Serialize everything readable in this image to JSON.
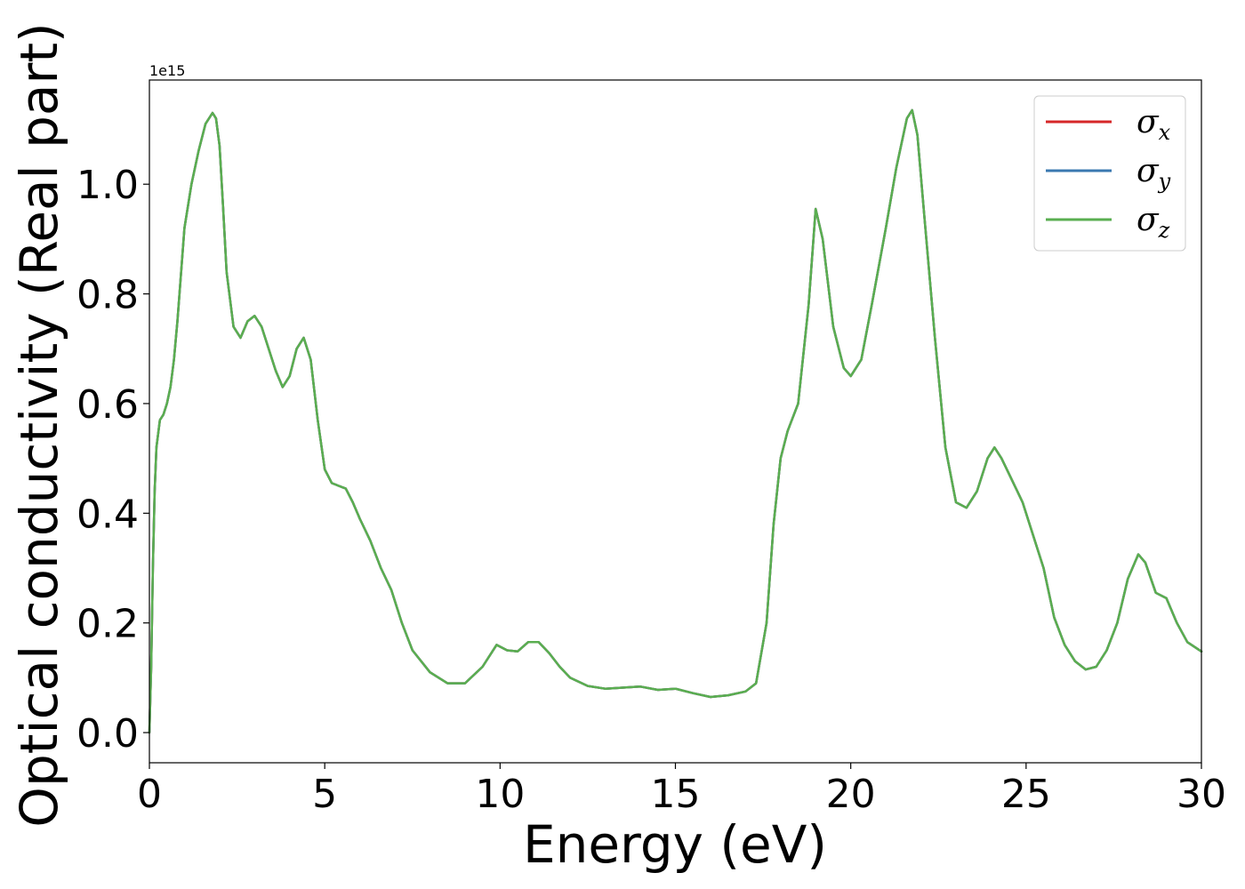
{
  "chart_data": {
    "type": "line",
    "xlabel": "Energy (eV)",
    "ylabel": "Optical conductivity (Real part)",
    "y_offset_text": "1e15",
    "xlim": [
      0,
      30
    ],
    "ylim": [
      -0.055,
      1.19
    ],
    "xticks": [
      0,
      5,
      10,
      15,
      20,
      25,
      30
    ],
    "xtick_labels": [
      "0",
      "5",
      "10",
      "15",
      "20",
      "25",
      "30"
    ],
    "yticks": [
      0.0,
      0.2,
      0.4,
      0.6,
      0.8,
      1.0
    ],
    "ytick_labels": [
      "0.0",
      "0.2",
      "0.4",
      "0.6",
      "0.8",
      "1.0"
    ],
    "grid": false,
    "legend_position": "top-right",
    "x": [
      0,
      0.05,
      0.1,
      0.15,
      0.2,
      0.3,
      0.4,
      0.5,
      0.6,
      0.7,
      0.8,
      1.0,
      1.2,
      1.4,
      1.6,
      1.8,
      1.9,
      2.0,
      2.1,
      2.2,
      2.4,
      2.6,
      2.8,
      3.0,
      3.2,
      3.4,
      3.6,
      3.8,
      4.0,
      4.2,
      4.4,
      4.6,
      4.8,
      5.0,
      5.2,
      5.4,
      5.6,
      5.8,
      6.0,
      6.3,
      6.6,
      6.9,
      7.2,
      7.5,
      8.0,
      8.5,
      9.0,
      9.5,
      9.9,
      10.2,
      10.5,
      10.8,
      11.1,
      11.4,
      11.7,
      12.0,
      12.5,
      13.0,
      13.5,
      14.0,
      14.5,
      15.0,
      15.5,
      16.0,
      16.5,
      17.0,
      17.3,
      17.6,
      17.8,
      18.0,
      18.2,
      18.5,
      18.8,
      19.0,
      19.2,
      19.5,
      19.8,
      20.0,
      20.3,
      20.6,
      21.0,
      21.3,
      21.6,
      21.75,
      21.9,
      22.1,
      22.4,
      22.7,
      23.0,
      23.3,
      23.6,
      23.9,
      24.1,
      24.3,
      24.6,
      24.9,
      25.2,
      25.5,
      25.8,
      26.1,
      26.4,
      26.7,
      27.0,
      27.3,
      27.6,
      27.9,
      28.2,
      28.4,
      28.7,
      29.0,
      29.3,
      29.6,
      30.0
    ],
    "series": [
      {
        "name": "σx",
        "label_base": "σ",
        "label_sub": "x",
        "color": "#d62728",
        "values": [
          0.0,
          0.12,
          0.3,
          0.44,
          0.52,
          0.57,
          0.58,
          0.6,
          0.63,
          0.68,
          0.75,
          0.92,
          1.0,
          1.06,
          1.11,
          1.13,
          1.12,
          1.07,
          0.96,
          0.84,
          0.74,
          0.72,
          0.75,
          0.76,
          0.74,
          0.7,
          0.66,
          0.63,
          0.65,
          0.7,
          0.72,
          0.68,
          0.57,
          0.48,
          0.455,
          0.45,
          0.445,
          0.42,
          0.39,
          0.35,
          0.3,
          0.26,
          0.2,
          0.15,
          0.11,
          0.09,
          0.09,
          0.12,
          0.16,
          0.15,
          0.148,
          0.165,
          0.165,
          0.145,
          0.12,
          0.1,
          0.085,
          0.08,
          0.082,
          0.084,
          0.078,
          0.08,
          0.072,
          0.065,
          0.068,
          0.075,
          0.09,
          0.2,
          0.38,
          0.5,
          0.55,
          0.6,
          0.78,
          0.955,
          0.9,
          0.74,
          0.665,
          0.65,
          0.68,
          0.78,
          0.92,
          1.03,
          1.12,
          1.135,
          1.09,
          0.94,
          0.72,
          0.52,
          0.42,
          0.41,
          0.44,
          0.5,
          0.52,
          0.5,
          0.46,
          0.42,
          0.36,
          0.3,
          0.21,
          0.16,
          0.13,
          0.115,
          0.12,
          0.15,
          0.2,
          0.28,
          0.325,
          0.31,
          0.255,
          0.245,
          0.2,
          0.165,
          0.148
        ]
      },
      {
        "name": "σy",
        "label_base": "σ",
        "label_sub": "y",
        "color": "#3a78b0",
        "values": [
          0.0,
          0.12,
          0.3,
          0.44,
          0.52,
          0.57,
          0.58,
          0.6,
          0.63,
          0.68,
          0.75,
          0.92,
          1.0,
          1.06,
          1.11,
          1.13,
          1.12,
          1.07,
          0.96,
          0.84,
          0.74,
          0.72,
          0.75,
          0.76,
          0.74,
          0.7,
          0.66,
          0.63,
          0.65,
          0.7,
          0.72,
          0.68,
          0.57,
          0.48,
          0.455,
          0.45,
          0.445,
          0.42,
          0.39,
          0.35,
          0.3,
          0.26,
          0.2,
          0.15,
          0.11,
          0.09,
          0.09,
          0.12,
          0.16,
          0.15,
          0.148,
          0.165,
          0.165,
          0.145,
          0.12,
          0.1,
          0.085,
          0.08,
          0.082,
          0.084,
          0.078,
          0.08,
          0.072,
          0.065,
          0.068,
          0.075,
          0.09,
          0.2,
          0.38,
          0.5,
          0.55,
          0.6,
          0.78,
          0.955,
          0.9,
          0.74,
          0.665,
          0.65,
          0.68,
          0.78,
          0.92,
          1.03,
          1.12,
          1.135,
          1.09,
          0.94,
          0.72,
          0.52,
          0.42,
          0.41,
          0.44,
          0.5,
          0.52,
          0.5,
          0.46,
          0.42,
          0.36,
          0.3,
          0.21,
          0.16,
          0.13,
          0.115,
          0.12,
          0.15,
          0.2,
          0.28,
          0.325,
          0.31,
          0.255,
          0.245,
          0.2,
          0.165,
          0.148
        ]
      },
      {
        "name": "σz",
        "label_base": "σ",
        "label_sub": "z",
        "color": "#5aae50",
        "values": [
          0.0,
          0.12,
          0.3,
          0.44,
          0.52,
          0.57,
          0.58,
          0.6,
          0.63,
          0.68,
          0.75,
          0.92,
          1.0,
          1.06,
          1.11,
          1.13,
          1.12,
          1.07,
          0.96,
          0.84,
          0.74,
          0.72,
          0.75,
          0.76,
          0.74,
          0.7,
          0.66,
          0.63,
          0.65,
          0.7,
          0.72,
          0.68,
          0.57,
          0.48,
          0.455,
          0.45,
          0.445,
          0.42,
          0.39,
          0.35,
          0.3,
          0.26,
          0.2,
          0.15,
          0.11,
          0.09,
          0.09,
          0.12,
          0.16,
          0.15,
          0.148,
          0.165,
          0.165,
          0.145,
          0.12,
          0.1,
          0.085,
          0.08,
          0.082,
          0.084,
          0.078,
          0.08,
          0.072,
          0.065,
          0.068,
          0.075,
          0.09,
          0.2,
          0.38,
          0.5,
          0.55,
          0.6,
          0.78,
          0.955,
          0.9,
          0.74,
          0.665,
          0.65,
          0.68,
          0.78,
          0.92,
          1.03,
          1.12,
          1.135,
          1.09,
          0.94,
          0.72,
          0.52,
          0.42,
          0.41,
          0.44,
          0.5,
          0.52,
          0.5,
          0.46,
          0.42,
          0.36,
          0.3,
          0.21,
          0.16,
          0.13,
          0.115,
          0.12,
          0.15,
          0.2,
          0.28,
          0.325,
          0.31,
          0.255,
          0.245,
          0.2,
          0.165,
          0.148
        ]
      }
    ]
  }
}
